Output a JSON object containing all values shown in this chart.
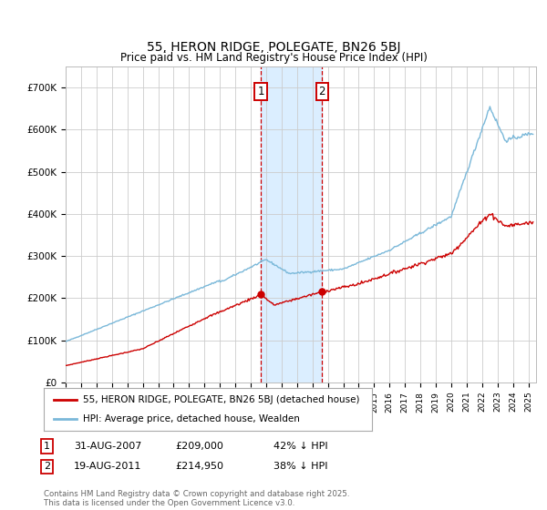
{
  "title": "55, HERON RIDGE, POLEGATE, BN26 5BJ",
  "subtitle": "Price paid vs. HM Land Registry's House Price Index (HPI)",
  "hpi_color": "#7ab8d9",
  "price_color": "#cc0000",
  "background_color": "#ffffff",
  "grid_color": "#cccccc",
  "ylim": [
    0,
    750000
  ],
  "yticks": [
    0,
    100000,
    200000,
    300000,
    400000,
    500000,
    600000,
    700000
  ],
  "ytick_labels": [
    "£0",
    "£100K",
    "£200K",
    "£300K",
    "£400K",
    "£500K",
    "£600K",
    "£700K"
  ],
  "sale1_date": "31-AUG-2007",
  "sale1_price": 209000,
  "sale1_pct": "42% ↓ HPI",
  "sale1_year": 2007.66,
  "sale2_date": "19-AUG-2011",
  "sale2_price": 214950,
  "sale2_pct": "38% ↓ HPI",
  "sale2_year": 2011.63,
  "legend_line1": "55, HERON RIDGE, POLEGATE, BN26 5BJ (detached house)",
  "legend_line2": "HPI: Average price, detached house, Wealden",
  "footer": "Contains HM Land Registry data © Crown copyright and database right 2025.\nThis data is licensed under the Open Government Licence v3.0.",
  "shade_color": "#dbeeff"
}
